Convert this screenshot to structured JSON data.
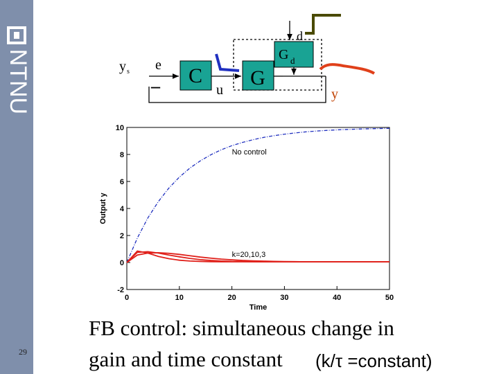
{
  "sidebar": {
    "logo": "NTNU",
    "page_number": 29
  },
  "diagram": {
    "setpoint": "y",
    "setpoint_sub": "s",
    "error": "e",
    "minus": "–",
    "controller": "C",
    "input": "u",
    "plant": "G",
    "disturbance_model": "G",
    "disturbance_model_sub": "d",
    "disturbance": "d",
    "output": "y"
  },
  "chart_data": {
    "type": "line",
    "xlabel": "Time",
    "ylabel": "Output y",
    "annotations": [
      "No control",
      "k=20,10,3"
    ],
    "x": [
      0,
      2,
      4,
      6,
      8,
      10,
      12,
      14,
      16,
      18,
      20,
      22,
      24,
      26,
      28,
      30,
      32,
      34,
      36,
      38,
      40,
      42,
      44,
      46,
      48,
      50
    ],
    "series": [
      {
        "color": "#1f2fbf",
        "dashed": true,
        "values": [
          0,
          1.81,
          3.3,
          4.51,
          5.51,
          6.32,
          6.99,
          7.53,
          7.98,
          8.35,
          8.65,
          8.89,
          9.09,
          9.26,
          9.39,
          9.5,
          9.59,
          9.67,
          9.73,
          9.78,
          9.82,
          9.85,
          9.88,
          9.9,
          9.92,
          9.93
        ]
      },
      {
        "color": "#e0201a",
        "dashed": false,
        "values": [
          0,
          0.85,
          0.7,
          0.45,
          0.28,
          0.17,
          0.11,
          0.08,
          0.06,
          0.05,
          0.05,
          0.05,
          0.05,
          0.05,
          0.05,
          0.05,
          0.05,
          0.05,
          0.05,
          0.05,
          0.05,
          0.05,
          0.05,
          0.05,
          0.05,
          0.05
        ]
      },
      {
        "color": "#e0201a",
        "dashed": false,
        "values": [
          0,
          0.75,
          0.8,
          0.7,
          0.55,
          0.42,
          0.3,
          0.21,
          0.15,
          0.11,
          0.08,
          0.07,
          0.06,
          0.05,
          0.05,
          0.05,
          0.05,
          0.05,
          0.05,
          0.05,
          0.05,
          0.05,
          0.05,
          0.05,
          0.05,
          0.05
        ]
      },
      {
        "color": "#e0201a",
        "dashed": false,
        "values": [
          0,
          0.55,
          0.7,
          0.72,
          0.68,
          0.6,
          0.5,
          0.4,
          0.32,
          0.25,
          0.2,
          0.15,
          0.12,
          0.1,
          0.08,
          0.07,
          0.06,
          0.05,
          0.05,
          0.05,
          0.05,
          0.05,
          0.05,
          0.05,
          0.05,
          0.05
        ]
      }
    ],
    "xlim": [
      0,
      50
    ],
    "xticks": [
      0,
      10,
      20,
      30,
      40,
      50
    ],
    "ylim": [
      -2,
      10
    ],
    "yticks": [
      -2,
      0,
      2,
      4,
      6,
      8,
      10
    ],
    "grid": false
  },
  "caption": {
    "lines": [
      "FB control: simultaneous change in",
      "gain and time constant"
    ],
    "formula": "(k/τ =constant)"
  }
}
